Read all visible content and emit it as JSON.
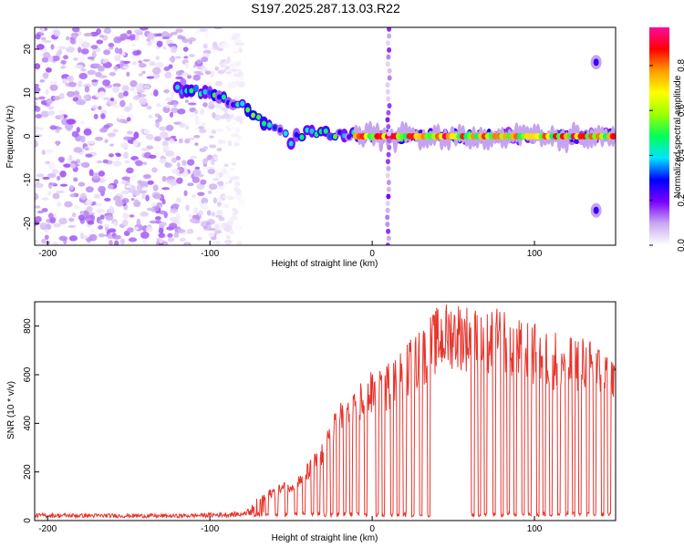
{
  "title": "S197.2025.287.13.03.R22",
  "chart_data": [
    {
      "type": "heatmap",
      "name": "spectrogram",
      "xlabel": "Height of straight line (km)",
      "ylabel": "Frequency (Hz)",
      "xlim": [
        -208,
        150
      ],
      "ylim": [
        -25,
        25
      ],
      "xticks": [
        -200,
        -100,
        0,
        100
      ],
      "yticks": [
        -20,
        -10,
        0,
        10,
        20
      ],
      "colorbar": {
        "label": "Normalized spectral amplitude",
        "range": [
          0,
          0.97
        ],
        "ticks": [
          0,
          0.2,
          0.4,
          0.6,
          0.8
        ],
        "colors": [
          "#ffffff",
          "#c8a8f0",
          "#7a00ff",
          "#0000ff",
          "#00e5ff",
          "#00ff5a",
          "#9cff00",
          "#ffff00",
          "#ff9c00",
          "#ff0000",
          "#ff0aa0"
        ]
      },
      "features": [
        {
          "kind": "noise",
          "x_range": [
            -208,
            -80
          ],
          "y_range": [
            -25,
            25
          ],
          "level": 0.12
        },
        {
          "kind": "ridge",
          "points": [
            [
              -120,
              11
            ],
            [
              -100,
              10
            ],
            [
              -80,
              7
            ],
            [
              -70,
              4
            ],
            [
              -60,
              2
            ],
            [
              -50,
              -1
            ],
            [
              -40,
              1
            ],
            [
              -20,
              0.5
            ],
            [
              0,
              0
            ],
            [
              150,
              0
            ]
          ],
          "level": 0.45
        },
        {
          "kind": "carrier",
          "x_range": [
            -10,
            150
          ],
          "y": 0,
          "level": 0.85
        },
        {
          "kind": "vertical_band",
          "x": 10,
          "level": 0.15
        },
        {
          "kind": "spot",
          "x": 138,
          "y": 17,
          "level": 0.25
        },
        {
          "kind": "spot",
          "x": 138,
          "y": -17,
          "level": 0.25
        }
      ]
    },
    {
      "type": "line",
      "name": "snr",
      "xlabel": "Height of straight line (km)",
      "ylabel": "SNR (10 * v/v)",
      "xlim": [
        -208,
        150
      ],
      "ylim": [
        0,
        900
      ],
      "xticks": [
        -200,
        -100,
        0,
        100
      ],
      "yticks": [
        0,
        200,
        400,
        600,
        800
      ],
      "color": "#e8342c",
      "envelope": [
        [
          -208,
          20
        ],
        [
          -120,
          18
        ],
        [
          -80,
          25
        ],
        [
          -70,
          90
        ],
        [
          -60,
          130
        ],
        [
          -45,
          170
        ],
        [
          -30,
          300
        ],
        [
          -20,
          450
        ],
        [
          -10,
          520
        ],
        [
          0,
          560
        ],
        [
          10,
          600
        ],
        [
          20,
          660
        ],
        [
          30,
          720
        ],
        [
          40,
          800
        ],
        [
          50,
          830
        ],
        [
          60,
          810
        ],
        [
          70,
          780
        ],
        [
          80,
          800
        ],
        [
          90,
          760
        ],
        [
          100,
          740
        ],
        [
          110,
          720
        ],
        [
          120,
          700
        ],
        [
          130,
          690
        ],
        [
          140,
          660
        ],
        [
          150,
          640
        ]
      ],
      "dropouts": [
        -70,
        -65,
        -59,
        -53,
        -47,
        -42,
        -37,
        -33,
        -29,
        -25,
        -21,
        -17,
        -13,
        -9,
        -4,
        3,
        7,
        12,
        16,
        20,
        25,
        30,
        35,
        62,
        66,
        70,
        75,
        80,
        84,
        88,
        93,
        97,
        102,
        106,
        110,
        115,
        120,
        124,
        128,
        133,
        137,
        142,
        146
      ]
    }
  ]
}
